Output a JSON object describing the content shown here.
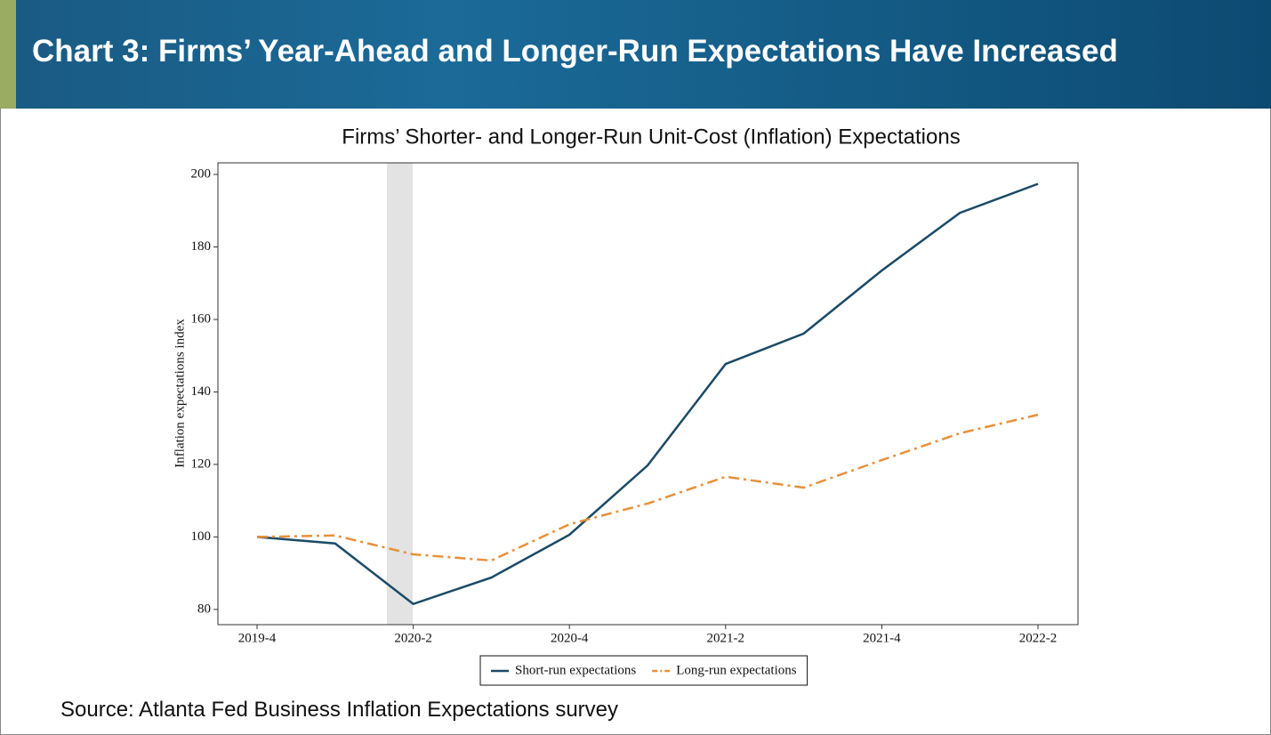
{
  "header": {
    "title": "Chart 3: Firms’ Year-Ahead and Longer-Run Expectations Have Increased"
  },
  "source": "Source: Atlanta Fed Business Inflation Expectations survey",
  "chart_data": {
    "type": "line",
    "title": "Firms’ Shorter- and Longer-Run Unit-Cost (Inflation) Expectations",
    "y_label": "Inflation expectations index",
    "categories": [
      "2019-4",
      null,
      "2020-2",
      null,
      "2020-4",
      null,
      "2021-2",
      null,
      "2021-4",
      null,
      "2022-2"
    ],
    "series": [
      {
        "name": "Short-run expectations",
        "color": "#1b4a66",
        "dash": "solid",
        "values": [
          100,
          98.2,
          81.5,
          88.8,
          100.6,
          119.7,
          147.7,
          156.1,
          173.5,
          189.4,
          197.4
        ]
      },
      {
        "name": "Long-run expectations",
        "color": "#e8903a",
        "dash": "dashdot",
        "values": [
          100,
          100.4,
          95.2,
          93.5,
          103.5,
          109.2,
          116.6,
          113.6,
          121.2,
          128.6,
          133.7
        ]
      }
    ],
    "ylim": [
      75.8,
      203.2
    ],
    "yticks": [
      80,
      100,
      120,
      140,
      160,
      180,
      200
    ],
    "grid": false,
    "legend": "bottom"
  }
}
